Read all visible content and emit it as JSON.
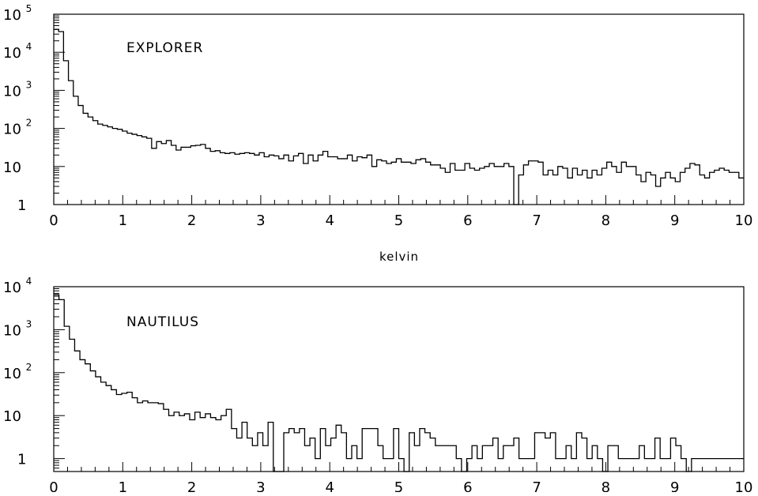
{
  "chart_data": [
    {
      "type": "bar",
      "histogram": true,
      "annotation": "EXPLORER",
      "xlabel": "kelvin",
      "ylabel": "",
      "xlim": [
        0,
        10
      ],
      "ylim": [
        1,
        100000
      ],
      "yscale": "log",
      "grid": false,
      "bin_width": 0.1,
      "x_ticks": [
        "0",
        "1",
        "2",
        "3",
        "4",
        "5",
        "6",
        "7",
        "8",
        "9",
        "10"
      ],
      "y_ticks": [
        {
          "value": 1,
          "base": "1",
          "exp": ""
        },
        {
          "value": 10,
          "base": "10",
          "exp": ""
        },
        {
          "value": 100,
          "base": "10",
          "exp": "2"
        },
        {
          "value": 1000,
          "base": "10",
          "exp": "3"
        },
        {
          "value": 10000,
          "base": "10",
          "exp": "4"
        },
        {
          "value": 100000,
          "base": "10",
          "exp": "5"
        }
      ],
      "values": [
        40000,
        35000,
        6000,
        1800,
        700,
        400,
        250,
        200,
        160,
        130,
        120,
        110,
        100,
        95,
        85,
        75,
        70,
        65,
        60,
        55,
        30,
        45,
        40,
        48,
        36,
        27,
        32,
        32,
        35,
        36,
        38,
        30,
        25,
        26,
        23,
        22,
        23,
        21,
        22,
        23,
        22,
        20,
        23,
        18,
        20,
        19,
        16,
        20,
        14,
        19,
        22,
        12,
        20,
        14,
        20,
        25,
        18,
        18,
        16,
        16,
        20,
        14,
        18,
        17,
        20,
        10,
        15,
        14,
        12,
        13,
        16,
        13,
        13,
        12,
        15,
        16,
        13,
        11,
        11,
        9,
        7,
        12,
        8,
        8,
        12,
        9,
        8,
        9,
        10,
        12,
        10,
        10,
        12,
        10,
        1,
        6,
        11,
        14,
        14,
        13,
        6,
        8,
        6,
        10,
        9,
        5,
        9,
        6,
        8,
        5,
        8,
        6,
        9,
        13,
        10,
        7,
        13,
        10,
        10,
        6,
        4,
        7,
        6,
        3,
        5,
        7,
        5,
        4,
        7,
        9,
        12,
        11,
        6,
        5,
        7,
        8,
        9,
        8,
        7,
        7,
        5
      ]
    },
    {
      "type": "bar",
      "histogram": true,
      "annotation": "NAUTILUS",
      "xlabel": "",
      "ylabel": "",
      "xlim": [
        0,
        10
      ],
      "ylim": [
        0.5,
        10000
      ],
      "yscale": "log",
      "grid": false,
      "bin_width": 0.1,
      "x_ticks": [
        "0",
        "1",
        "2",
        "3",
        "4",
        "5",
        "6",
        "7",
        "8",
        "9",
        "10"
      ],
      "y_ticks": [
        {
          "value": 1,
          "base": "1",
          "exp": ""
        },
        {
          "value": 10,
          "base": "10",
          "exp": ""
        },
        {
          "value": 100,
          "base": "10",
          "exp": "2"
        },
        {
          "value": 1000,
          "base": "10",
          "exp": "3"
        },
        {
          "value": 10000,
          "base": "10",
          "exp": "4"
        }
      ],
      "values": [
        6500,
        5000,
        1200,
        600,
        320,
        200,
        160,
        110,
        80,
        60,
        50,
        40,
        31,
        33,
        35,
        26,
        20,
        22,
        20,
        20,
        19,
        14,
        10,
        12,
        10,
        11,
        8,
        12,
        9,
        11,
        9,
        8,
        10,
        14,
        5,
        3,
        7,
        3,
        2,
        4,
        2,
        7,
        0.5,
        0.5,
        4,
        5,
        4,
        5,
        2,
        3,
        1,
        5,
        2,
        3,
        6,
        4,
        1,
        2,
        1,
        5,
        5,
        5,
        2,
        1,
        1,
        5,
        1,
        0.5,
        4,
        2,
        5,
        4,
        3,
        2,
        2,
        2,
        2,
        1,
        0.5,
        1,
        2,
        1,
        2,
        2,
        3,
        1,
        2,
        2,
        3,
        1,
        1,
        1,
        4,
        4,
        3,
        4,
        1,
        1,
        2,
        1,
        4,
        3,
        1,
        2,
        1,
        0.5,
        2,
        2,
        1,
        1,
        1,
        1,
        2,
        1,
        1,
        3,
        1,
        1,
        3,
        2,
        1,
        0.5,
        1,
        1,
        1,
        1,
        1,
        1,
        1,
        1,
        1,
        1
      ]
    }
  ]
}
